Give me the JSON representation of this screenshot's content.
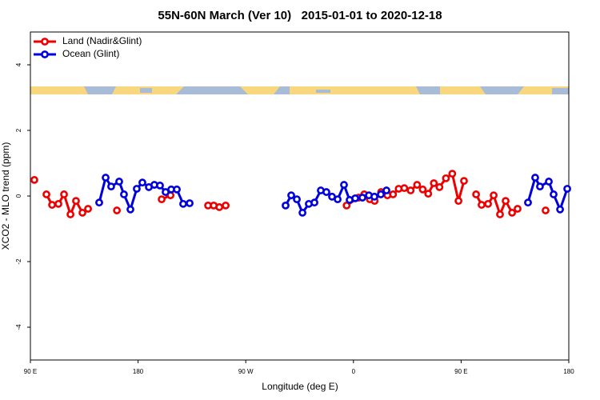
{
  "chart_data": {
    "type": "line",
    "title": "55N-60N March (Ver 10)   2015-01-01 to 2020-12-18",
    "x_label": "Longitude (deg E)",
    "y_label": "XCO2 - MLO trend (ppm)",
    "xlim": [
      90,
      540
    ],
    "ylim": [
      -5,
      5
    ],
    "xticks": [
      {
        "value": 90,
        "label": "90 E"
      },
      180,
      {
        "value": 270,
        "label": "90 W"
      },
      {
        "value": 360,
        "label": "0"
      },
      {
        "value": 450,
        "label": "90 E"
      },
      {
        "value": 540,
        "label": "180"
      }
    ],
    "yticks": [
      -4,
      -2,
      0,
      2,
      4
    ],
    "legend": "top-left",
    "series": [
      {
        "name": "Land (Nadir&Glint)",
        "color": "#ee0000",
        "x": [
          93.3,
          null,
          103.4,
          108.1,
          113.4,
          118.1,
          123.5,
          128.1,
          133.5,
          138.2,
          null,
          162.3,
          null,
          199.7,
          207.1,
          null,
          238.5,
          243.2,
          247.9,
          253.2,
          null,
          354.3,
          364.3,
          369.0,
          373.7,
          377.7,
          383.1,
          388.4,
          393.1,
          397.8,
          402.5,
          407.8,
          413.2,
          417.9,
          422.5,
          427.2,
          431.9,
          437.3,
          442.6,
          447.8,
          452.4,
          null,
          462.5,
          467.1,
          472.5,
          477.2,
          482.5,
          487.2,
          492.6,
          497.2,
          null,
          520.6
        ],
        "values": [
          0.49,
          null,
          0.05,
          -0.27,
          -0.24,
          0.05,
          -0.56,
          -0.15,
          -0.51,
          -0.39,
          null,
          -0.44,
          null,
          -0.1,
          0.02,
          null,
          -0.29,
          -0.29,
          -0.34,
          -0.29,
          null,
          -0.29,
          -0.05,
          0.05,
          -0.1,
          -0.15,
          0.12,
          0.02,
          0.05,
          0.22,
          0.24,
          0.17,
          0.34,
          0.2,
          0.07,
          0.39,
          0.27,
          0.54,
          0.68,
          -0.15,
          0.46,
          null,
          0.05,
          -0.27,
          -0.24,
          0.02,
          -0.56,
          -0.15,
          -0.51,
          -0.39,
          null,
          -0.44
        ]
      },
      {
        "name": "Ocean (Glint)",
        "color": "#0000dd",
        "x": [
          147.5,
          152.9,
          157.5,
          164.2,
          168.2,
          173.6,
          178.9,
          183.6,
          189.0,
          193.6,
          198.3,
          203.0,
          207.7,
          212.4,
          217.7,
          223.1,
          null,
          303.3,
          308.0,
          312.7,
          317.4,
          322.7,
          327.4,
          332.7,
          337.4,
          342.1,
          346.8,
          352.1,
          356.8,
          361.5,
          367.5,
          372.9,
          377.5,
          382.9,
          387.6,
          null,
          505.9,
          511.9,
          515.9,
          523.3,
          527.3,
          532.7,
          538.7
        ],
        "values": [
          -0.2,
          0.56,
          0.29,
          0.44,
          0.05,
          -0.41,
          0.22,
          0.41,
          0.27,
          0.34,
          0.32,
          0.12,
          0.2,
          0.2,
          -0.24,
          -0.22,
          null,
          -0.29,
          0.02,
          -0.1,
          -0.51,
          -0.24,
          -0.2,
          0.17,
          0.12,
          -0.02,
          -0.1,
          0.34,
          -0.12,
          -0.07,
          -0.05,
          0.02,
          -0.02,
          0.05,
          0.17,
          null,
          -0.2,
          0.56,
          0.29,
          0.44,
          0.05,
          -0.41,
          0.22
        ]
      }
    ]
  }
}
